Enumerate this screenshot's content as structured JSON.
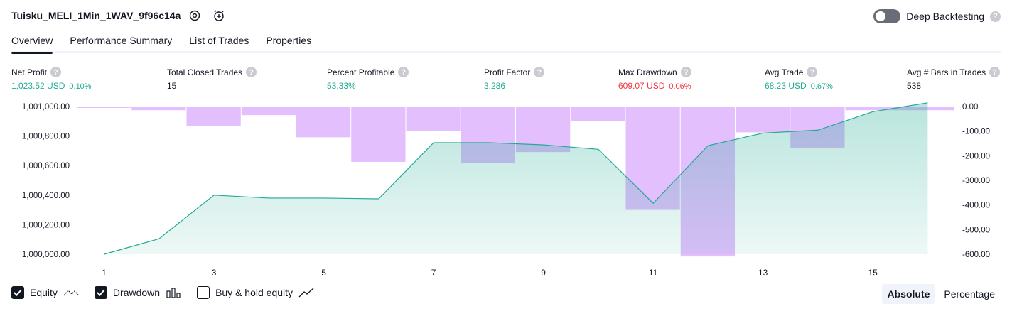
{
  "header": {
    "title": "Tuisku_MELI_1Min_1WAV_9f96c14a",
    "settings_icon": "gear-icon",
    "add_alert_icon": "alarm-plus-icon",
    "deep_backtesting_label": "Deep Backtesting",
    "deep_backtesting_on": false,
    "help_glyph": "?"
  },
  "tabs": [
    {
      "label": "Overview",
      "active": true
    },
    {
      "label": "Performance Summary",
      "active": false
    },
    {
      "label": "List of Trades",
      "active": false
    },
    {
      "label": "Properties",
      "active": false
    }
  ],
  "stats": [
    {
      "label": "Net Profit",
      "value": "1,023.52 USD",
      "pct": "0.10%",
      "tone": "green"
    },
    {
      "label": "Total Closed Trades",
      "value": "15",
      "pct": "",
      "tone": "dark"
    },
    {
      "label": "Percent Profitable",
      "value": "53.33%",
      "pct": "",
      "tone": "green"
    },
    {
      "label": "Profit Factor",
      "value": "3.286",
      "pct": "",
      "tone": "green"
    },
    {
      "label": "Max Drawdown",
      "value": "609.07 USD",
      "pct": "0.06%",
      "tone": "red"
    },
    {
      "label": "Avg Trade",
      "value": "68.23 USD",
      "pct": "0.67%",
      "tone": "green"
    },
    {
      "label": "Avg # Bars in Trades",
      "value": "538",
      "pct": "",
      "tone": "dark"
    }
  ],
  "chart_data": {
    "type": "line",
    "x": [
      1,
      2,
      3,
      4,
      5,
      6,
      7,
      8,
      9,
      10,
      11,
      12,
      13,
      14,
      15,
      16
    ],
    "x_tick_labels": [
      "1",
      "3",
      "5",
      "7",
      "9",
      "11",
      "13",
      "15"
    ],
    "series": [
      {
        "name": "Equity",
        "axis": "left",
        "kind": "area",
        "values": [
          1000000,
          1000105,
          1000400,
          1000380,
          1000380,
          1000375,
          1000755,
          1000755,
          1000740,
          1000710,
          1000345,
          1000735,
          1000820,
          1000840,
          1000965,
          1001025
        ]
      },
      {
        "name": "Drawdown",
        "axis": "right",
        "kind": "bar",
        "values": [
          -5,
          -15,
          -80,
          -35,
          -125,
          -225,
          -100,
          -230,
          -185,
          -60,
          -420,
          -609,
          -105,
          -170,
          -15,
          -15
        ]
      }
    ],
    "left_axis": {
      "ticks": [
        "1,001,000.00",
        "1,000,800.00",
        "1,000,600.00",
        "1,000,400.00",
        "1,000,200.00",
        "1,000,000.00"
      ],
      "range": [
        1000000,
        1001025
      ]
    },
    "right_axis": {
      "ticks": [
        "0.00",
        "-100.00",
        "-200.00",
        "-300.00",
        "-400.00",
        "-500.00",
        "-600.00"
      ],
      "range": [
        -609,
        0
      ]
    },
    "colors": {
      "equity_line": "#22ab94",
      "equity_fill": "#22ab94",
      "drawdown_bar": "#b95ff9"
    }
  },
  "legend": {
    "items": [
      {
        "label": "Equity",
        "checked": true,
        "icon": "equity-line-icon"
      },
      {
        "label": "Drawdown",
        "checked": true,
        "icon": "drawdown-bars-icon"
      },
      {
        "label": "Buy & hold equity",
        "checked": false,
        "icon": "buy-hold-line-icon"
      }
    ],
    "modes": [
      {
        "label": "Absolute",
        "active": true
      },
      {
        "label": "Percentage",
        "active": false
      }
    ]
  }
}
